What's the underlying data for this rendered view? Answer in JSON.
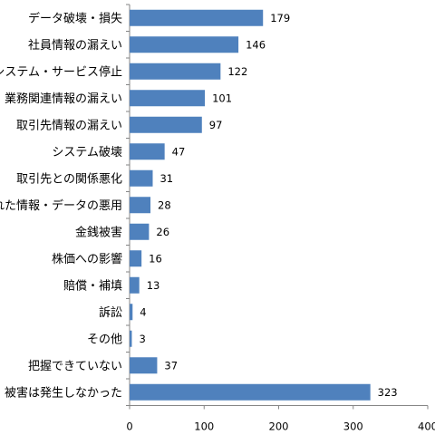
{
  "chart_data": {
    "type": "bar",
    "orientation": "horizontal",
    "categories": [
      "データ破壊・損失",
      "社員情報の漏えい",
      "システム・サービス停止",
      "業務関連情報の漏えい",
      "取引先情報の漏えい",
      "システム破壊",
      "取引先との関係悪化",
      "盗まれた情報・データの悪用",
      "金銭被害",
      "株価への影響",
      "賠償・補填",
      "訴訟",
      "その他",
      "把握できていない",
      "被害は発生しなかった"
    ],
    "values": [
      179,
      146,
      122,
      101,
      97,
      47,
      31,
      28,
      26,
      16,
      13,
      4,
      3,
      37,
      323
    ],
    "xlim": [
      0,
      400
    ],
    "xticks": [
      0,
      100,
      200,
      300,
      400
    ],
    "title": "",
    "xlabel": "",
    "ylabel": "",
    "grid": false,
    "legend": "none",
    "colors": {
      "bar": "#4F81BD",
      "axis": "#868686",
      "text": "#000000"
    }
  }
}
